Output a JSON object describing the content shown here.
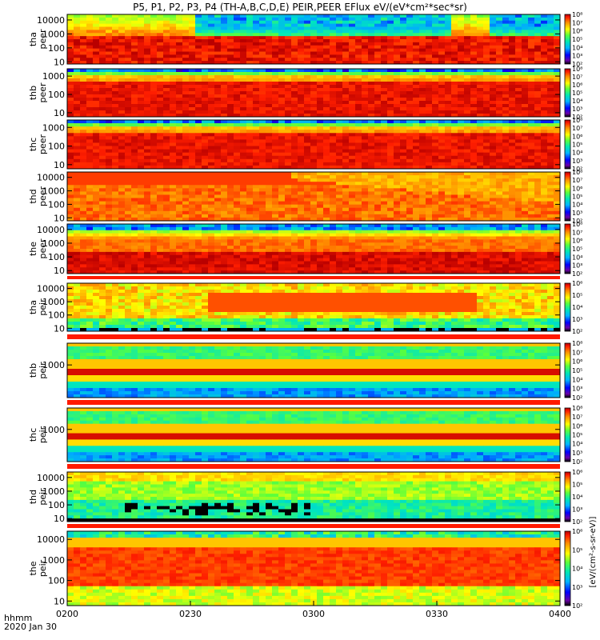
{
  "title": "P5, P1, P2, P3, P4 (TH-A,B,C,D,E) PEIR,PEER EFlux eV/(eV*cm²*sec*sr)",
  "footer": {
    "time_label": "hhmm",
    "date_label": "2020 Jan 30"
  },
  "colorbar_unit_label": "[eV/(cm²-s-sr-eV)]",
  "chart_data": {
    "type": "heatmap",
    "x_ticks": [
      "0200",
      "0230",
      "0300",
      "0330",
      "0400"
    ],
    "x_range": [
      "0200",
      "0400"
    ],
    "panels": [
      {
        "line1": "tha",
        "line2": "peer",
        "y_ticks": [
          "10",
          "100",
          "1000",
          "10000"
        ],
        "cbar_ticks": [
          "10²",
          "10³",
          "10⁴",
          "10⁵",
          "10⁶",
          "10⁷",
          "10⁸"
        ],
        "profile": "tha_peer"
      },
      {
        "line1": "thb",
        "line2": "peer",
        "y_ticks": [
          "10",
          "100",
          "1000"
        ],
        "cbar_ticks": [
          "10²",
          "10³",
          "10⁴",
          "10⁵",
          "10⁶",
          "10⁷",
          "10⁸"
        ],
        "profile": "peer_cold"
      },
      {
        "line1": "thc",
        "line2": "peer",
        "y_ticks": [
          "10",
          "100",
          "1000"
        ],
        "cbar_ticks": [
          "10²",
          "10³",
          "10⁴",
          "10⁵",
          "10⁶",
          "10⁷",
          "10⁸"
        ],
        "profile": "peer_cold"
      },
      {
        "line1": "thd",
        "line2": "peer",
        "y_ticks": [
          "10",
          "100",
          "1000",
          "10000"
        ],
        "cbar_ticks": [
          "10²",
          "10³",
          "10⁴",
          "10⁵",
          "10⁶",
          "10⁷",
          "10⁸"
        ],
        "profile": "thd_peer"
      },
      {
        "line1": "the",
        "line2": "peer",
        "y_ticks": [
          "10",
          "100",
          "1000",
          "10000"
        ],
        "cbar_ticks": [
          "10²",
          "10³",
          "10⁴",
          "10⁵",
          "10⁶",
          "10⁷",
          "10⁸"
        ],
        "profile": "the_peer"
      },
      {
        "line1": "tha",
        "line2": "peir",
        "y_ticks": [
          "10",
          "100",
          "1000",
          "10000"
        ],
        "cbar_ticks": [
          "10²",
          "10³",
          "10⁴",
          "10⁵",
          "10⁶"
        ],
        "profile": "tha_peir"
      },
      {
        "line1": "thb",
        "line2": "peir",
        "y_ticks": [
          "1000"
        ],
        "cbar_ticks": [
          "10²",
          "10³",
          "10⁴",
          "10⁵",
          "10⁶",
          "10⁷",
          "10⁸"
        ],
        "profile": "peir_band"
      },
      {
        "line1": "thc",
        "line2": "peir",
        "y_ticks": [
          "1000"
        ],
        "cbar_ticks": [
          "10²",
          "10³",
          "10⁴",
          "10⁵",
          "10⁶",
          "10⁷",
          "10⁸"
        ],
        "profile": "peir_band"
      },
      {
        "line1": "thd",
        "line2": "peir",
        "y_ticks": [
          "10",
          "100",
          "1000",
          "10000"
        ],
        "cbar_ticks": [
          "10²",
          "10³",
          "10⁴",
          "10⁵",
          "10⁶"
        ],
        "profile": "thd_peir"
      },
      {
        "line1": "the",
        "line2": "peir",
        "y_ticks": [
          "10",
          "100",
          "1000",
          "10000"
        ],
        "cbar_ticks": [
          "10²",
          "10³",
          "10⁴",
          "10⁵",
          "10⁶"
        ],
        "profile": "the_peir"
      }
    ]
  }
}
